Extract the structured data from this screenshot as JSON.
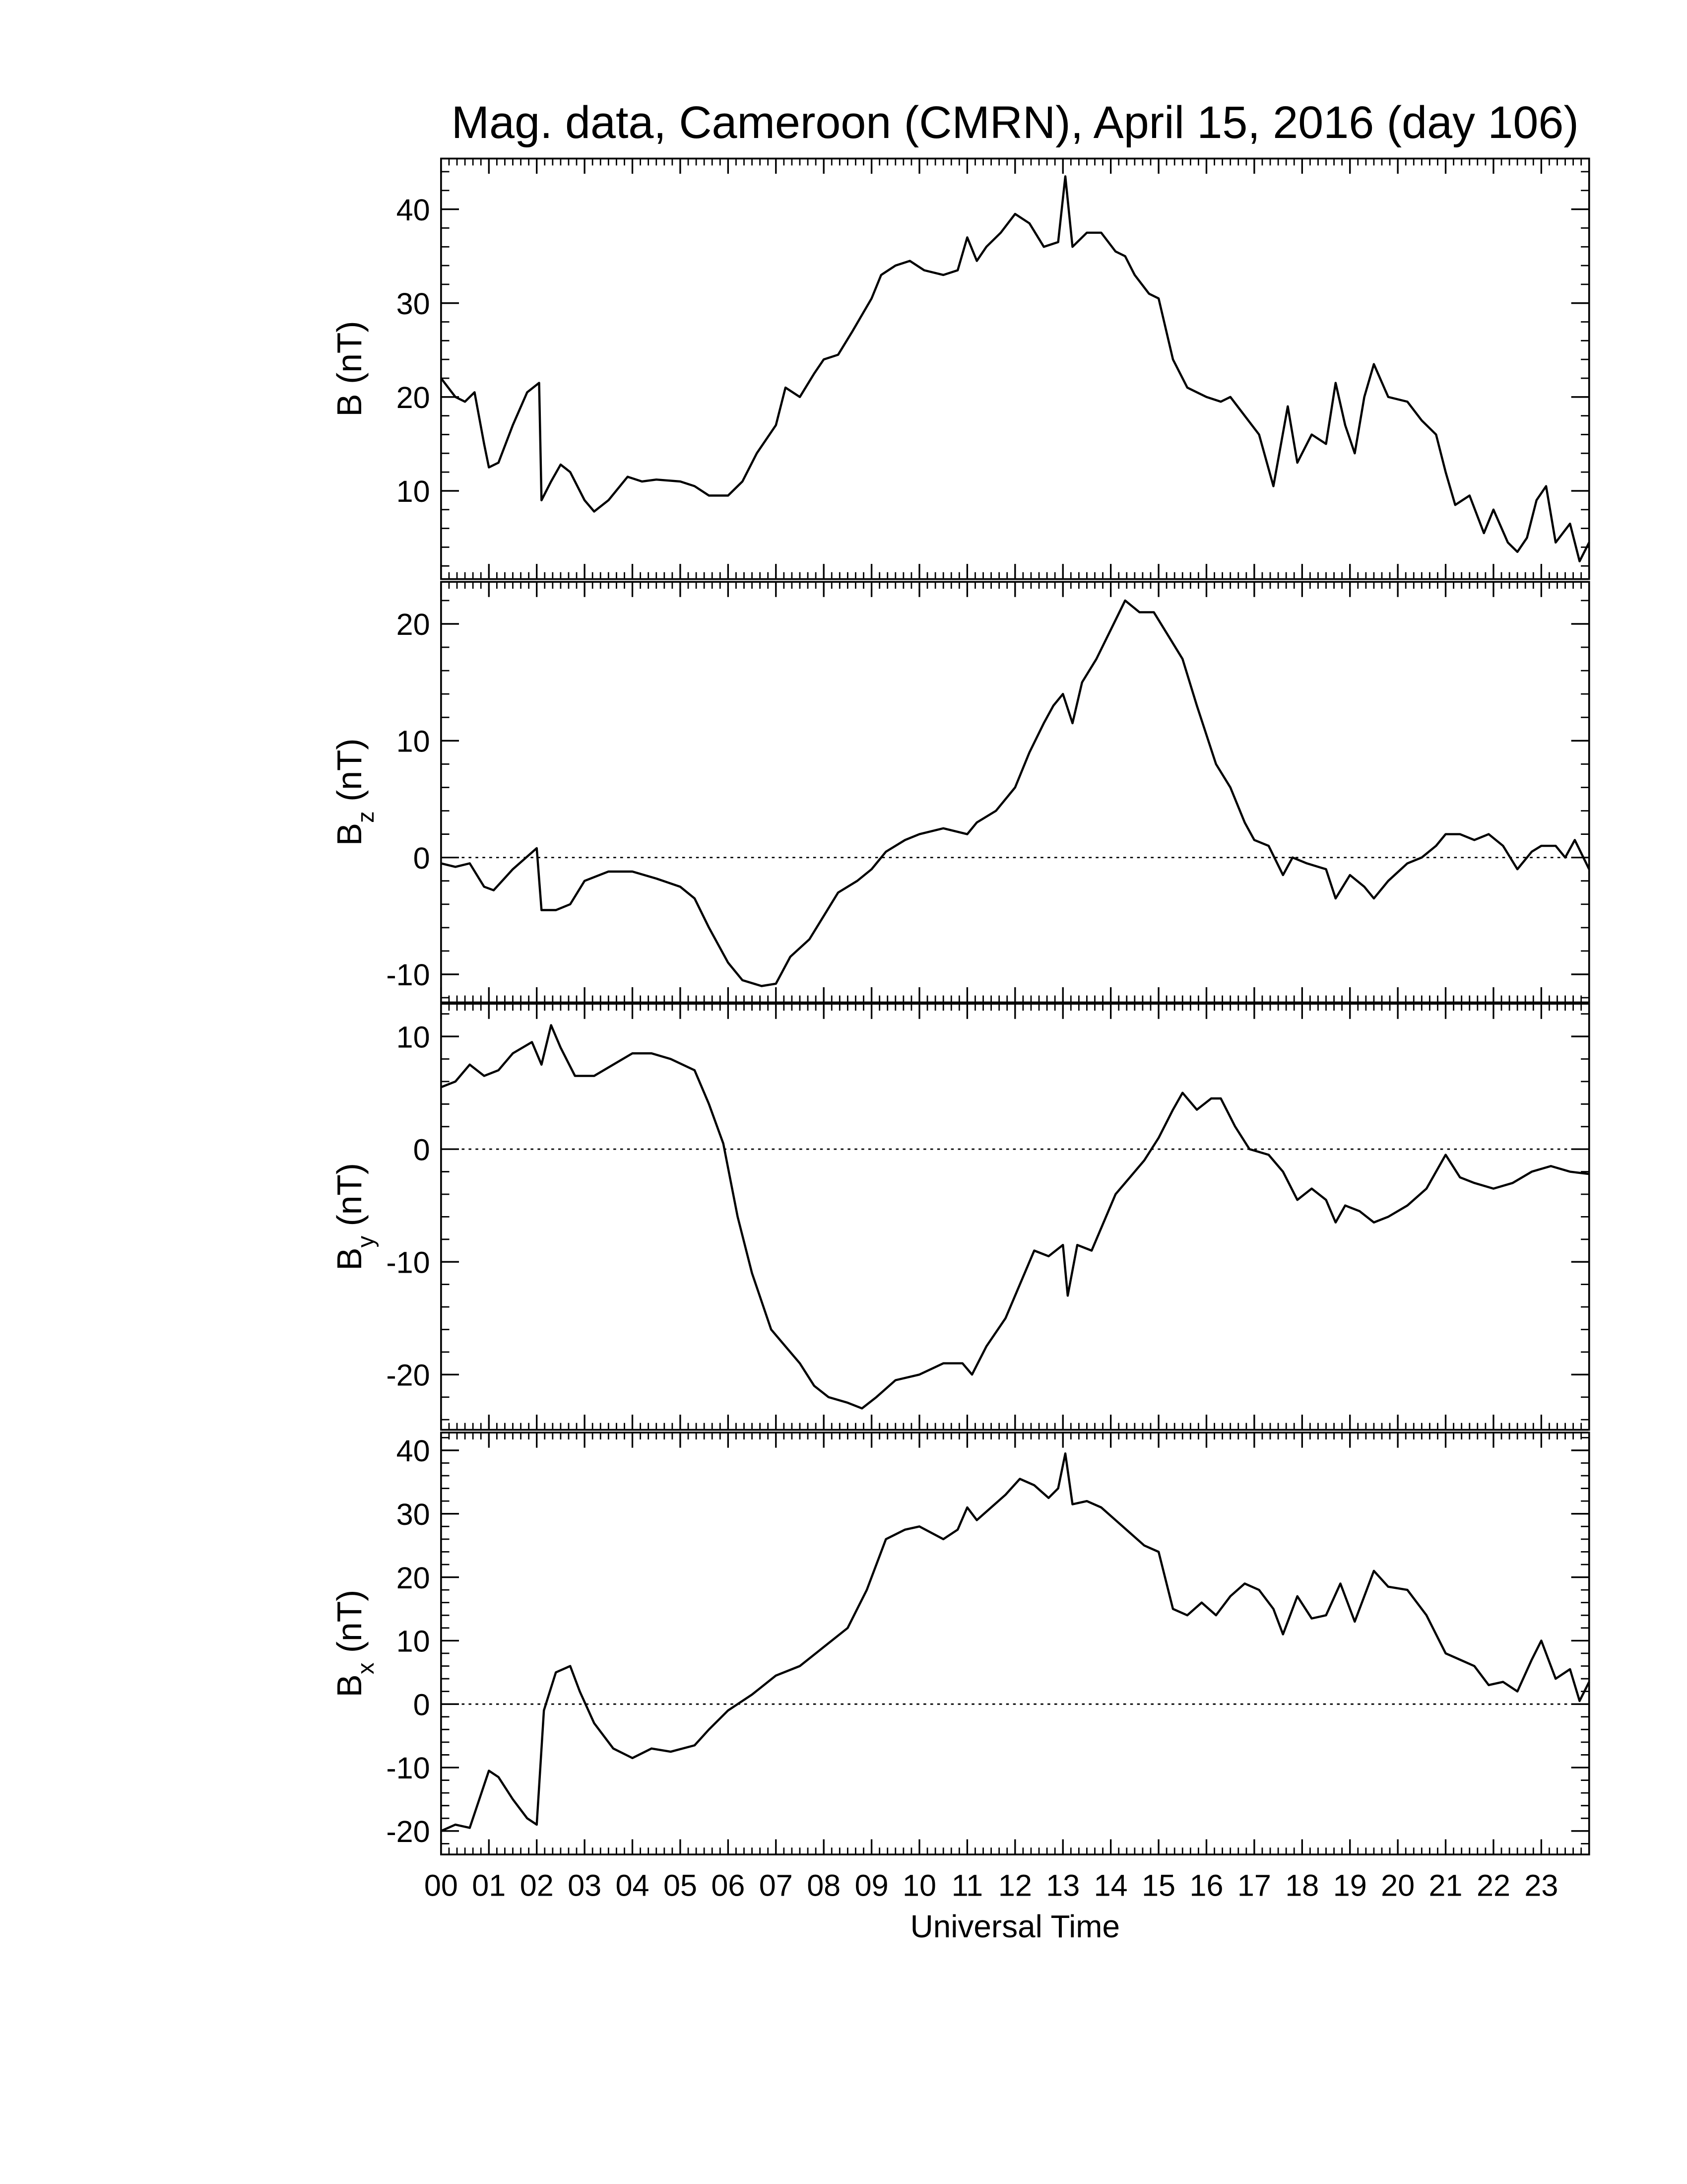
{
  "chart_data": [
    {
      "type": "line",
      "title": "Mag. data, Cameroon (CMRN), April 15, 2016 (day 106)",
      "ylabel": {
        "text": "B",
        "unit": "(nT)"
      },
      "color": "#000000",
      "xlim": [
        0,
        24
      ],
      "ylim": [
        0.6,
        45.4
      ],
      "yticks": [
        10,
        20,
        30,
        40
      ],
      "x": [
        0,
        0.3,
        0.5,
        0.7,
        0.9,
        1.0,
        1.2,
        1.5,
        1.8,
        2.05,
        2.1,
        2.3,
        2.5,
        2.7,
        3.0,
        3.2,
        3.5,
        3.9,
        4.2,
        4.5,
        5.0,
        5.3,
        5.6,
        6.0,
        6.3,
        6.6,
        7.0,
        7.2,
        7.5,
        7.8,
        8.0,
        8.3,
        8.6,
        9.0,
        9.2,
        9.5,
        9.8,
        10.1,
        10.5,
        10.8,
        11.0,
        11.2,
        11.4,
        11.7,
        12.0,
        12.3,
        12.6,
        12.9,
        13.05,
        13.2,
        13.5,
        13.8,
        14.1,
        14.3,
        14.5,
        14.8,
        15.0,
        15.3,
        15.6,
        16.0,
        16.3,
        16.5,
        16.8,
        17.1,
        17.4,
        17.7,
        17.9,
        18.2,
        18.5,
        18.7,
        18.9,
        19.1,
        19.3,
        19.5,
        19.8,
        20.2,
        20.5,
        20.8,
        21.0,
        21.2,
        21.5,
        21.8,
        22.0,
        22.3,
        22.5,
        22.7,
        22.9,
        23.1,
        23.3,
        23.6,
        23.8,
        24.0
      ],
      "values": [
        22,
        20,
        19.5,
        20.5,
        15,
        12.5,
        13,
        17,
        20.5,
        21.5,
        9,
        11,
        12.8,
        12,
        9,
        7.8,
        9,
        11.5,
        11,
        11.2,
        11,
        10.5,
        9.5,
        9.5,
        11,
        14,
        17,
        21,
        20,
        22.5,
        24,
        24.5,
        27,
        30.5,
        33,
        34,
        34.5,
        33.5,
        33,
        33.5,
        37,
        34.5,
        36,
        37.5,
        39.5,
        38.5,
        36,
        36.5,
        43.5,
        36,
        37.5,
        37.5,
        35.5,
        35,
        33,
        31,
        30.5,
        24,
        21,
        20,
        19.5,
        20,
        18,
        16,
        10.5,
        19,
        13,
        16,
        15,
        21.5,
        17,
        14,
        20,
        23.5,
        20,
        19.5,
        17.5,
        16,
        12,
        8.5,
        9.5,
        5.5,
        8,
        4.5,
        3.5,
        5,
        9,
        10.5,
        4.5,
        6.5,
        2.5,
        4.5
      ]
    },
    {
      "type": "line",
      "ylabel": {
        "text": "B",
        "subscript": "z",
        "unit": "(nT)"
      },
      "color": "#000000",
      "zero_line": true,
      "xlim": [
        0,
        24
      ],
      "ylim": [
        -12.4,
        23.6
      ],
      "yticks": [
        -10,
        0,
        10,
        20
      ],
      "x": [
        0,
        0.3,
        0.6,
        0.9,
        1.1,
        1.5,
        2.0,
        2.1,
        2.4,
        2.7,
        3.0,
        3.5,
        4.0,
        4.5,
        5.0,
        5.3,
        5.6,
        6.0,
        6.3,
        6.7,
        7.0,
        7.3,
        7.7,
        8.0,
        8.3,
        8.7,
        9.0,
        9.3,
        9.7,
        10.0,
        10.5,
        11.0,
        11.2,
        11.6,
        12.0,
        12.3,
        12.6,
        12.8,
        13.0,
        13.2,
        13.4,
        13.7,
        14.0,
        14.3,
        14.6,
        14.9,
        15.2,
        15.5,
        15.8,
        16.2,
        16.5,
        16.8,
        17.0,
        17.3,
        17.6,
        17.8,
        18.1,
        18.5,
        18.7,
        19.0,
        19.3,
        19.5,
        19.8,
        20.2,
        20.5,
        20.8,
        21.0,
        21.3,
        21.6,
        21.9,
        22.2,
        22.5,
        22.8,
        23.0,
        23.3,
        23.5,
        23.7,
        24.0
      ],
      "values": [
        -0.5,
        -0.8,
        -0.5,
        -2.5,
        -2.8,
        -1,
        0.8,
        -4.5,
        -4.5,
        -4,
        -2,
        -1.2,
        -1.2,
        -1.8,
        -2.5,
        -3.5,
        -6,
        -9,
        -10.5,
        -11,
        -10.8,
        -8.5,
        -7,
        -5,
        -3,
        -2,
        -1,
        0.5,
        1.5,
        2,
        2.5,
        2,
        3,
        4,
        6,
        9,
        11.5,
        13,
        14,
        11.5,
        15,
        17,
        19.5,
        22,
        21,
        21,
        19,
        17,
        13,
        8,
        6,
        3,
        1.5,
        1,
        -1.5,
        0,
        -0.5,
        -1,
        -3.5,
        -1.5,
        -2.5,
        -3.5,
        -2,
        -0.5,
        0,
        1,
        2,
        2,
        1.5,
        2,
        1,
        -1,
        0.5,
        1,
        1,
        0,
        1.5,
        -1
      ]
    },
    {
      "type": "line",
      "ylabel": {
        "text": "B",
        "subscript": "y",
        "unit": "(nT)"
      },
      "color": "#000000",
      "zero_line": true,
      "xlim": [
        0,
        24
      ],
      "ylim": [
        -24.9,
        12.9
      ],
      "yticks": [
        -20,
        -10,
        0,
        10
      ],
      "x": [
        0,
        0.3,
        0.6,
        0.9,
        1.2,
        1.5,
        1.9,
        2.1,
        2.3,
        2.5,
        2.8,
        3.2,
        3.6,
        4.0,
        4.4,
        4.8,
        5.3,
        5.6,
        5.9,
        6.2,
        6.5,
        6.9,
        7.2,
        7.5,
        7.8,
        8.1,
        8.5,
        8.8,
        9.1,
        9.5,
        10.0,
        10.5,
        10.9,
        11.1,
        11.4,
        11.8,
        12.1,
        12.4,
        12.7,
        13.0,
        13.1,
        13.3,
        13.6,
        13.9,
        14.1,
        14.4,
        14.7,
        15.0,
        15.3,
        15.5,
        15.8,
        16.1,
        16.3,
        16.6,
        16.9,
        17.3,
        17.6,
        17.9,
        18.2,
        18.5,
        18.7,
        18.9,
        19.2,
        19.5,
        19.8,
        20.2,
        20.6,
        21.0,
        21.3,
        21.6,
        22.0,
        22.4,
        22.8,
        23.2,
        23.6,
        24.0
      ],
      "values": [
        5.5,
        6,
        7.5,
        6.5,
        7,
        8.5,
        9.5,
        7.5,
        11,
        9,
        6.5,
        6.5,
        7.5,
        8.5,
        8.5,
        8,
        7,
        4,
        0.5,
        -6,
        -11,
        -16,
        -17.5,
        -19,
        -21,
        -22,
        -22.5,
        -23,
        -22,
        -20.5,
        -20,
        -19,
        -19,
        -20,
        -17.5,
        -15,
        -12,
        -9,
        -9.5,
        -8.5,
        -13,
        -8.5,
        -9,
        -6,
        -4,
        -2.5,
        -1,
        1,
        3.5,
        5,
        3.5,
        4.5,
        4.5,
        2,
        0,
        -0.5,
        -2,
        -4.5,
        -3.5,
        -4.5,
        -6.5,
        -5,
        -5.5,
        -6.5,
        -6,
        -5,
        -3.5,
        -0.5,
        -2.5,
        -3,
        -3.5,
        -3,
        -2,
        -1.5,
        -2,
        -2.2
      ]
    },
    {
      "type": "line",
      "ylabel": {
        "text": "B",
        "subscript": "x",
        "unit": "(nT)"
      },
      "xlabel": "Universal Time",
      "color": "#000000",
      "zero_line": true,
      "xlim": [
        0,
        24
      ],
      "ylim": [
        -23.7,
        42.8
      ],
      "yticks": [
        -20,
        -10,
        0,
        10,
        20,
        30,
        40
      ],
      "xticks": [
        {
          "value": 0,
          "label": "00"
        },
        {
          "value": 1,
          "label": "01"
        },
        {
          "value": 2,
          "label": "02"
        },
        {
          "value": 3,
          "label": "03"
        },
        {
          "value": 4,
          "label": "04"
        },
        {
          "value": 5,
          "label": "05"
        },
        {
          "value": 6,
          "label": "06"
        },
        {
          "value": 7,
          "label": "07"
        },
        {
          "value": 8,
          "label": "08"
        },
        {
          "value": 9,
          "label": "09"
        },
        10,
        11,
        12,
        13,
        14,
        15,
        16,
        17,
        18,
        19,
        20,
        21,
        22,
        23
      ],
      "x": [
        0,
        0.3,
        0.6,
        0.8,
        1.0,
        1.2,
        1.5,
        1.8,
        2.0,
        2.15,
        2.4,
        2.7,
        2.9,
        3.2,
        3.6,
        4.0,
        4.4,
        4.8,
        5.3,
        5.6,
        6.0,
        6.5,
        7.0,
        7.5,
        8.0,
        8.5,
        8.9,
        9.3,
        9.7,
        10.0,
        10.5,
        10.8,
        11.0,
        11.2,
        11.5,
        11.8,
        12.1,
        12.4,
        12.7,
        12.9,
        13.05,
        13.2,
        13.5,
        13.8,
        14.1,
        14.4,
        14.7,
        15.0,
        15.3,
        15.6,
        15.9,
        16.2,
        16.5,
        16.8,
        17.1,
        17.4,
        17.6,
        17.9,
        18.2,
        18.5,
        18.8,
        19.1,
        19.5,
        19.8,
        20.2,
        20.6,
        21.0,
        21.3,
        21.6,
        21.9,
        22.2,
        22.5,
        22.8,
        23.0,
        23.3,
        23.6,
        23.8,
        24.0
      ],
      "values": [
        -20,
        -19,
        -19.5,
        -15,
        -10.5,
        -11.5,
        -15,
        -18,
        -19,
        -1,
        5,
        6,
        2,
        -3,
        -7,
        -8.5,
        -7,
        -7.5,
        -6.5,
        -4,
        -1,
        1.5,
        4.5,
        6,
        9,
        12,
        18,
        26,
        27.5,
        28,
        26,
        27.5,
        31,
        29,
        31,
        33,
        35.5,
        34.5,
        32.5,
        34,
        39.5,
        31.5,
        32,
        31,
        29,
        27,
        25,
        24,
        15,
        14,
        16,
        14,
        17,
        19,
        18,
        15,
        11,
        17,
        13.5,
        14,
        19,
        13,
        21,
        18.5,
        18,
        14,
        8,
        7,
        6,
        3,
        3.5,
        2,
        7,
        10,
        4,
        5.5,
        0.5,
        3.5
      ]
    }
  ]
}
